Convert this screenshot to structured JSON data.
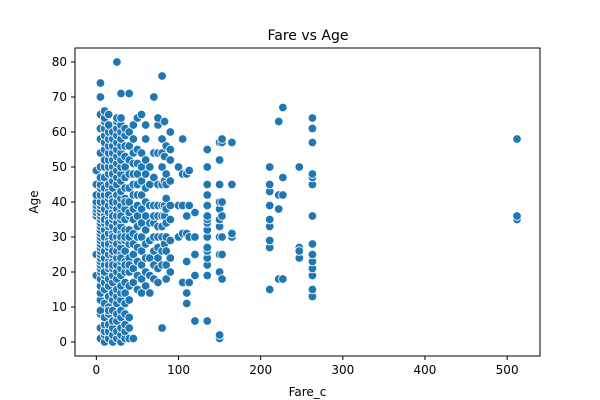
{
  "chart_data": {
    "type": "scatter",
    "title": "Fare vs Age",
    "xlabel": "Fare_c",
    "ylabel": "Age",
    "xlim": [
      -26,
      540
    ],
    "ylim": [
      -4,
      84
    ],
    "xticks": [
      0,
      100,
      200,
      300,
      400,
      500
    ],
    "yticks": [
      0,
      10,
      20,
      30,
      40,
      50,
      60,
      70,
      80
    ],
    "grid": false,
    "legend": "none",
    "point_color": "#1f77b4",
    "series": [
      {
        "x": [
          0,
          0,
          0,
          0,
          0,
          0,
          0,
          0,
          0,
          0,
          5,
          5,
          5,
          5,
          5,
          5,
          5,
          5,
          5,
          5,
          5,
          5,
          5,
          5,
          5,
          5,
          5,
          5,
          5,
          5,
          5,
          5,
          5,
          5,
          5,
          5,
          5,
          5,
          5,
          5,
          5,
          5,
          5,
          5,
          5,
          5,
          5,
          5,
          5,
          5,
          10,
          10,
          10,
          10,
          10,
          10,
          10,
          10,
          10,
          10,
          10,
          10,
          10,
          10,
          10,
          10,
          10,
          10,
          10,
          10,
          10,
          10,
          10,
          10,
          10,
          10,
          10,
          10,
          10,
          10,
          10,
          10,
          10,
          10,
          10,
          15,
          15,
          15,
          15,
          15,
          15,
          15,
          15,
          15,
          15,
          15,
          15,
          15,
          15,
          15,
          15,
          15,
          15,
          15,
          15,
          15,
          15,
          15,
          15,
          15,
          15,
          15,
          15,
          15,
          15,
          15,
          15,
          15,
          15,
          15,
          20,
          20,
          20,
          20,
          20,
          20,
          20,
          20,
          20,
          20,
          20,
          20,
          20,
          20,
          20,
          20,
          20,
          20,
          20,
          20,
          20,
          20,
          20,
          20,
          20,
          20,
          20,
          20,
          20,
          20,
          20,
          20,
          20,
          20,
          20,
          25,
          25,
          25,
          25,
          25,
          25,
          25,
          25,
          25,
          25,
          25,
          25,
          25,
          25,
          25,
          25,
          25,
          25,
          25,
          25,
          25,
          25,
          25,
          25,
          25,
          25,
          25,
          25,
          25,
          25,
          25,
          25,
          25,
          25,
          25,
          30,
          30,
          30,
          30,
          30,
          30,
          30,
          30,
          30,
          30,
          30,
          30,
          30,
          30,
          30,
          30,
          30,
          30,
          30,
          30,
          30,
          30,
          30,
          30,
          30,
          30,
          30,
          30,
          30,
          30,
          30,
          30,
          30,
          30,
          30,
          35,
          35,
          35,
          35,
          35,
          35,
          35,
          35,
          35,
          35,
          35,
          35,
          35,
          35,
          35,
          35,
          35,
          35,
          35,
          35,
          35,
          35,
          35,
          35,
          35,
          40,
          40,
          40,
          40,
          40,
          40,
          40,
          40,
          40,
          40,
          40,
          40,
          40,
          40,
          40,
          40,
          40,
          40,
          40,
          40,
          45,
          45,
          45,
          45,
          45,
          45,
          45,
          45,
          45,
          45,
          45,
          45,
          45,
          45,
          45,
          50,
          50,
          50,
          50,
          50,
          50,
          50,
          50,
          50,
          50,
          50,
          50,
          50,
          50,
          55,
          55,
          55,
          55,
          55,
          55,
          55,
          55,
          55,
          55,
          55,
          55,
          60,
          60,
          60,
          60,
          60,
          60,
          60,
          60,
          60,
          60,
          60,
          60,
          65,
          65,
          65,
          65,
          65,
          65,
          65,
          65,
          70,
          70,
          70,
          70,
          70,
          70,
          70,
          70,
          70,
          70,
          75,
          75,
          75,
          75,
          75,
          75,
          75,
          75,
          75,
          75,
          75,
          75,
          80,
          80,
          80,
          80,
          80,
          80,
          80,
          80,
          80,
          80,
          80,
          80,
          83,
          83,
          83,
          83,
          83,
          83,
          85,
          85,
          85,
          85,
          85,
          85,
          85,
          85,
          85,
          85,
          90,
          90,
          90,
          90,
          90,
          90,
          90,
          90,
          90,
          100,
          100,
          100,
          105,
          105,
          105,
          105,
          105,
          110,
          110,
          110,
          110,
          110,
          110,
          113,
          113,
          113,
          113,
          120,
          120,
          120,
          120,
          120,
          135,
          135,
          135,
          135,
          135,
          135,
          135,
          135,
          135,
          135,
          135,
          135,
          135,
          135,
          135,
          135,
          150,
          150,
          150,
          150,
          150,
          150,
          150,
          150,
          150,
          150,
          150,
          150,
          153,
          153,
          153,
          153,
          153,
          153,
          153,
          165,
          165,
          165,
          165,
          165,
          211,
          211,
          211,
          211,
          211,
          211,
          211,
          211,
          211,
          211,
          222,
          222,
          222,
          222,
          227,
          227,
          227,
          227,
          247,
          247,
          247,
          247,
          263,
          263,
          263,
          263,
          263,
          263,
          263,
          263,
          263,
          263,
          263,
          263,
          263,
          263,
          512,
          512,
          512
        ],
        "y": [
          19,
          25,
          36,
          37,
          38,
          39,
          40,
          42,
          45,
          49,
          1,
          4,
          8,
          9,
          12,
          14,
          16,
          18,
          20,
          21,
          22,
          23,
          24,
          25,
          26,
          27,
          28,
          29,
          30,
          31,
          32,
          33,
          34,
          35,
          36,
          37,
          38,
          39,
          40,
          42,
          44,
          45,
          47,
          50,
          54,
          58,
          61,
          65,
          70,
          74,
          0,
          2,
          3,
          5,
          7,
          11,
          15,
          17,
          19,
          20,
          22,
          24,
          26,
          28,
          30,
          32,
          34,
          36,
          38,
          40,
          42,
          44,
          47,
          50,
          52,
          55,
          57,
          59,
          61,
          63,
          64,
          66,
          20,
          30,
          35,
          1,
          3,
          5,
          8,
          10,
          13,
          16,
          18,
          21,
          23,
          25,
          27,
          29,
          31,
          33,
          35,
          37,
          39,
          41,
          43,
          45,
          48,
          50,
          52,
          54,
          56,
          58,
          60,
          62,
          65,
          22,
          28,
          34,
          42,
          9,
          0,
          2,
          4,
          6,
          9,
          12,
          14,
          17,
          19,
          21,
          23,
          25,
          27,
          29,
          31,
          33,
          35,
          37,
          39,
          41,
          44,
          46,
          48,
          50,
          52,
          54,
          56,
          58,
          60,
          22,
          26,
          30,
          36,
          40,
          48,
          1,
          3,
          6,
          8,
          11,
          13,
          15,
          18,
          20,
          22,
          24,
          26,
          28,
          30,
          32,
          34,
          36,
          38,
          40,
          42,
          45,
          47,
          49,
          51,
          53,
          55,
          57,
          59,
          61,
          63,
          64,
          28,
          32,
          36,
          80,
          0,
          2,
          4,
          7,
          9,
          12,
          14,
          16,
          19,
          21,
          23,
          25,
          27,
          29,
          31,
          33,
          35,
          37,
          39,
          41,
          43,
          46,
          48,
          50,
          52,
          54,
          56,
          58,
          60,
          62,
          64,
          24,
          30,
          36,
          71,
          1,
          3,
          5,
          8,
          11,
          14,
          17,
          20,
          23,
          26,
          29,
          32,
          35,
          38,
          41,
          44,
          47,
          50,
          53,
          56,
          59,
          61,
          22,
          30,
          40,
          1,
          4,
          7,
          12,
          16,
          20,
          24,
          28,
          32,
          36,
          40,
          44,
          48,
          52,
          56,
          60,
          22,
          30,
          37,
          71,
          17,
          21,
          25,
          28,
          31,
          35,
          38,
          42,
          45,
          48,
          51,
          54,
          58,
          62,
          1,
          15,
          19,
          23,
          27,
          30,
          33,
          36,
          39,
          42,
          45,
          48,
          51,
          55,
          64,
          14,
          18,
          22,
          26,
          30,
          34,
          38,
          42,
          46,
          50,
          54,
          65,
          16,
          20,
          24,
          28,
          32,
          36,
          40,
          44,
          48,
          52,
          58,
          62,
          14,
          19,
          24,
          29,
          34,
          39,
          45,
          50,
          18,
          22,
          26,
          30,
          34,
          36,
          39,
          47,
          54,
          70,
          17,
          21,
          24,
          27,
          30,
          33,
          36,
          39,
          45,
          54,
          62,
          64,
          4,
          22,
          26,
          30,
          33,
          36,
          39,
          45,
          50,
          54,
          58,
          76,
          28,
          36,
          39,
          46,
          53,
          63,
          18,
          22,
          26,
          30,
          34,
          38,
          41,
          45,
          48,
          56,
          20,
          24,
          29,
          35,
          39,
          46,
          52,
          55,
          60,
          30,
          39,
          50,
          17,
          31,
          39,
          48,
          58,
          11,
          14,
          23,
          31,
          36,
          48,
          17,
          30,
          39,
          49,
          6,
          19,
          25,
          30,
          37,
          6,
          19,
          22,
          24,
          26,
          27,
          30,
          32,
          34,
          35,
          36,
          39,
          42,
          45,
          50,
          55,
          1,
          2,
          20,
          25,
          30,
          33,
          35,
          38,
          40,
          45,
          52,
          57,
          18,
          25,
          30,
          36,
          40,
          57,
          58,
          30,
          31,
          45,
          57,
          31,
          15,
          27,
          29,
          29,
          33,
          35,
          39,
          43,
          45,
          50,
          18,
          38,
          42,
          63,
          47,
          18,
          42,
          67,
          24,
          27,
          26,
          50,
          13,
          15,
          19,
          21,
          23,
          25,
          28,
          36,
          45,
          47,
          48,
          57,
          61,
          64,
          35,
          36,
          58
        ]
      }
    ]
  }
}
